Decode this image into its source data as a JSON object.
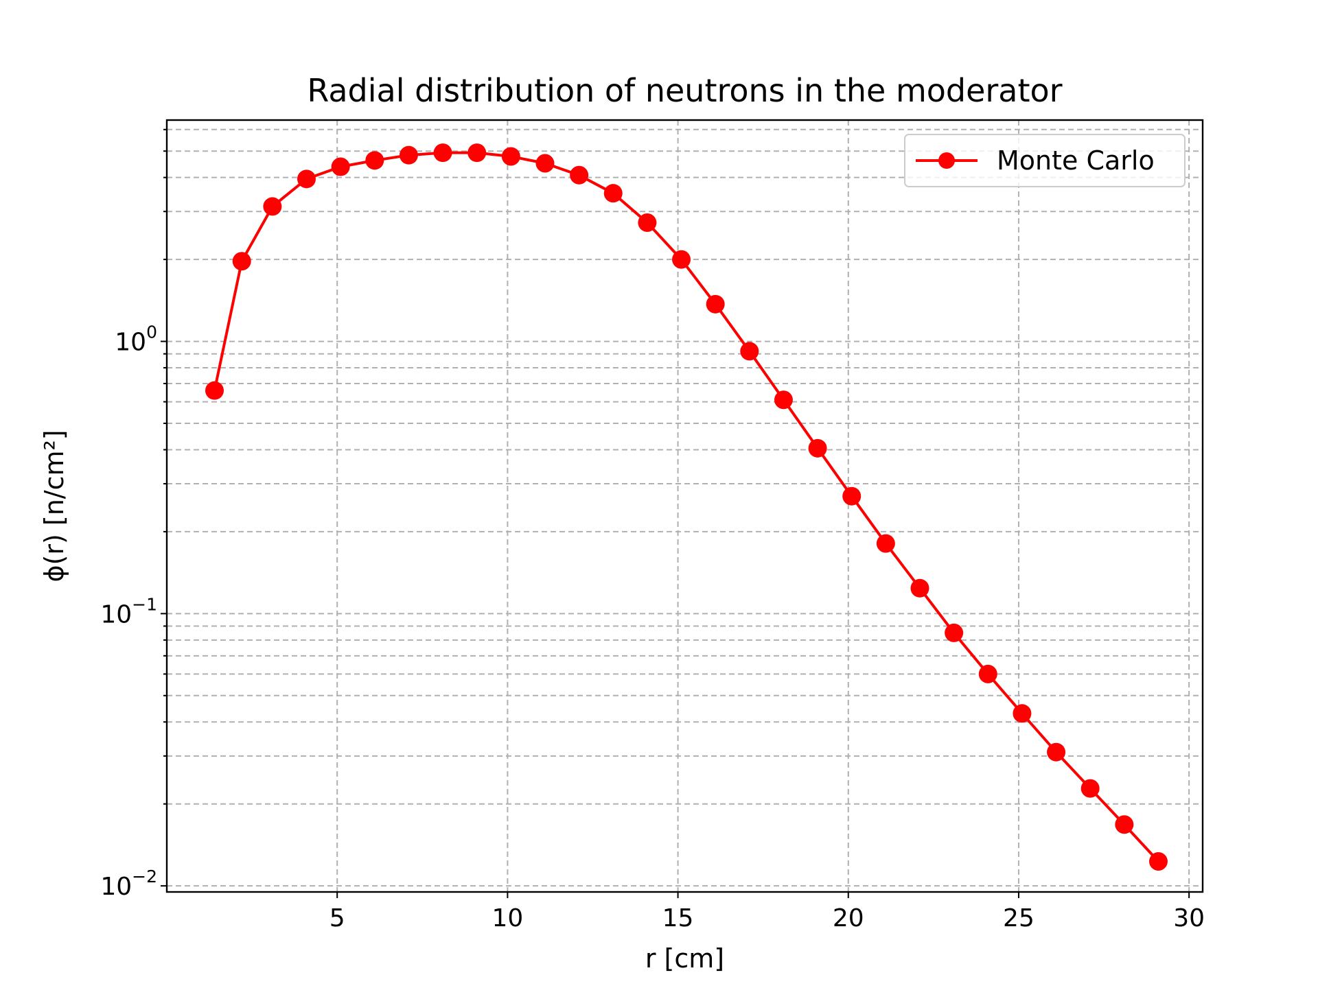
{
  "chart_data": {
    "type": "line",
    "title": "Radial distribution of neutrons in the moderator",
    "xlabel": "r [cm]",
    "ylabel": "ϕ(r) [n/cm²]",
    "yscale": "log",
    "xlim": [
      0,
      30.4
    ],
    "ylim": [
      0.0095,
      6.5
    ],
    "grid": true,
    "grid_style": "dashed",
    "legend_position": "top-right",
    "x_ticks": [
      5,
      10,
      15,
      20,
      25,
      30
    ],
    "y_ticks": [
      {
        "value": 0.01,
        "base": "10",
        "exp": "−2"
      },
      {
        "value": 0.1,
        "base": "10",
        "exp": "−1"
      },
      {
        "value": 1,
        "base": "10",
        "exp": "0"
      }
    ],
    "series": [
      {
        "name": "Monte Carlo",
        "color": "#ff0000",
        "marker": "circle",
        "x": [
          1.4,
          2.2,
          3.1,
          4.1,
          5.1,
          6.1,
          7.1,
          8.1,
          9.1,
          10.1,
          11.1,
          12.1,
          13.1,
          14.1,
          15.1,
          16.1,
          17.1,
          18.1,
          19.1,
          20.1,
          21.1,
          22.1,
          23.1,
          24.1,
          25.1,
          26.1,
          27.1,
          28.1,
          29.1
        ],
        "y": [
          0.66,
          1.97,
          3.13,
          3.95,
          4.38,
          4.62,
          4.83,
          4.93,
          4.93,
          4.78,
          4.51,
          4.08,
          3.5,
          2.73,
          2.0,
          1.37,
          0.92,
          0.61,
          0.405,
          0.27,
          0.181,
          0.124,
          0.085,
          0.06,
          0.043,
          0.031,
          0.0228,
          0.0168,
          0.0123
        ]
      }
    ]
  }
}
